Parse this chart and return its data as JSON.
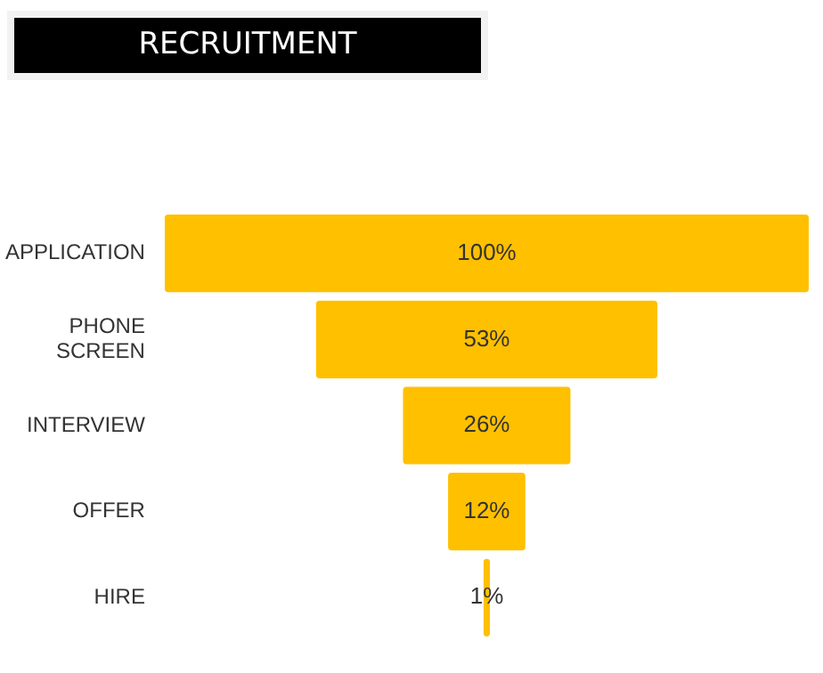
{
  "chart_data": {
    "type": "other",
    "title": "RECRUITMENT",
    "categories": [
      "APPLICATION",
      "PHONE SCREEN",
      "INTERVIEW",
      "OFFER",
      "HIRE"
    ],
    "values": [
      100,
      53,
      26,
      12,
      1
    ],
    "value_labels": [
      "100%",
      "53%",
      "26%",
      "12%",
      "1%"
    ],
    "color": "#ffc000",
    "legend": false
  }
}
